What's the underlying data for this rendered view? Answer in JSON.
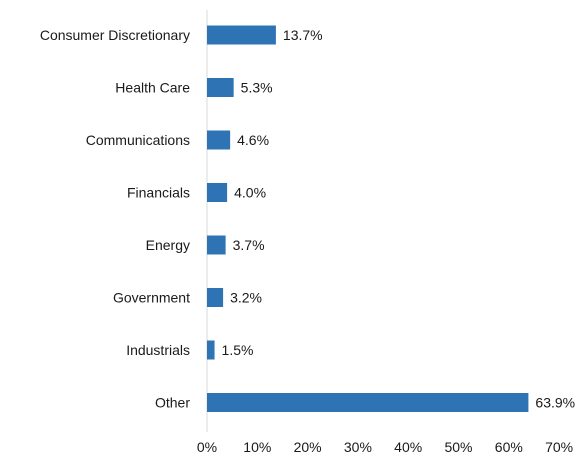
{
  "chart_data": {
    "type": "bar",
    "orientation": "horizontal",
    "categories": [
      "Consumer Discretionary",
      "Health Care",
      "Communications",
      "Financials",
      "Energy",
      "Government",
      "Industrials",
      "Other"
    ],
    "values": [
      13.7,
      5.3,
      4.6,
      4.0,
      3.7,
      3.2,
      1.5,
      63.9
    ],
    "data_labels": [
      "13.7%",
      "5.3%",
      "4.6%",
      "4.0%",
      "3.7%",
      "3.2%",
      "1.5%",
      "63.9%"
    ],
    "xlim": [
      0,
      70
    ],
    "x_ticks": [
      0,
      10,
      20,
      30,
      40,
      50,
      60,
      70
    ],
    "x_tick_labels": [
      "0%",
      "10%",
      "20%",
      "30%",
      "40%",
      "50%",
      "60%",
      "70%"
    ],
    "bar_color": "#2e74b5",
    "axis_color": "#d9d9d9",
    "grid": false,
    "legend": false
  }
}
